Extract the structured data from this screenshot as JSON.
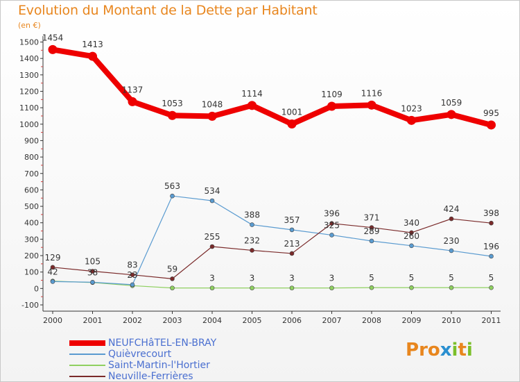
{
  "title": "Evolution du Montant de la Dette par Habitant",
  "unit_label": "(en €)",
  "logo": {
    "text": "Proxiti",
    "letters": [
      "P",
      "r",
      "o",
      "x",
      "i",
      "t",
      "i"
    ],
    "colors": [
      "#e8861e",
      "#e8861e",
      "#e8861e",
      "#2a8fd0",
      "#7bbf2a",
      "#e8861e",
      "#7bbf2a"
    ]
  },
  "chart_data": {
    "type": "line",
    "title": "Evolution du Montant de la Dette par Habitant",
    "ylabel": "(en €)",
    "xlabel": "",
    "categories": [
      "2000",
      "2001",
      "2002",
      "2003",
      "2004",
      "2005",
      "2006",
      "2007",
      "2008",
      "2009",
      "2010",
      "2011"
    ],
    "ylim": [
      -100,
      1500
    ],
    "yticks": [
      -100,
      0,
      100,
      200,
      300,
      400,
      500,
      600,
      700,
      800,
      900,
      1000,
      1100,
      1200,
      1300,
      1400,
      1500
    ],
    "grid": false,
    "legend_position": "bottom-left",
    "series": [
      {
        "name": "NEUFCHâTEL-EN-BRAY",
        "color": "#ee0000",
        "width": 8,
        "marker": 6.5,
        "values": [
          1454,
          1413,
          1137,
          1053,
          1048,
          1114,
          1001,
          1109,
          1116,
          1023,
          1059,
          995
        ],
        "labels": [
          "1454",
          "1413",
          "1137",
          "1053",
          "1048",
          "1114",
          "1001",
          "1109",
          "1116",
          "1023",
          "1059",
          "995"
        ]
      },
      {
        "name": "Quièvrecourt",
        "color": "#5a9bd0",
        "width": 1.2,
        "marker": 3,
        "values": [
          42,
          38,
          23,
          563,
          534,
          388,
          357,
          325,
          289,
          260,
          230,
          196
        ],
        "labels": [
          "42",
          "38",
          "23",
          "563",
          "534",
          "388",
          "357",
          "325",
          "289",
          "260",
          "230",
          "196"
        ]
      },
      {
        "name": "Saint-Martin-l'Hortier",
        "color": "#8fd060",
        "width": 1.2,
        "marker": 3,
        "values": [
          45,
          36,
          17,
          3,
          3,
          3,
          3,
          3,
          5,
          5,
          5,
          5
        ],
        "labels": [
          "",
          "",
          "",
          "",
          "3",
          "3",
          "3",
          "3",
          "5",
          "5",
          "5",
          "5"
        ]
      },
      {
        "name": "Neuville-Ferrières",
        "color": "#7a2a2a",
        "width": 1.2,
        "marker": 3,
        "values": [
          129,
          105,
          83,
          59,
          255,
          232,
          213,
          396,
          371,
          340,
          424,
          398
        ],
        "labels": [
          "129",
          "105",
          "83",
          "59",
          "255",
          "232",
          "213",
          "396",
          "371",
          "340",
          "424",
          "398"
        ]
      }
    ]
  }
}
